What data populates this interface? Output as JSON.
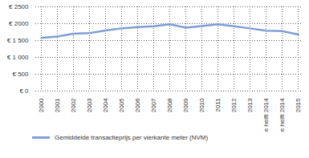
{
  "chart_data": {
    "type": "line",
    "categories": [
      "2000",
      "2001",
      "2002",
      "2003",
      "2004",
      "2005",
      "2006",
      "2007",
      "2008",
      "2009",
      "2010",
      "2011",
      "2012",
      "2013",
      "1e helft 2014",
      "2e helft 2014",
      "2015"
    ],
    "series": [
      {
        "name": "Gemiddelde transactieprijs per vierkante meter (NVM)",
        "color": "#7f9fd4",
        "values": [
          1580,
          1620,
          1700,
          1720,
          1800,
          1860,
          1900,
          1920,
          1980,
          1880,
          1930,
          1980,
          1920,
          1860,
          1790,
          1780,
          1680
        ]
      }
    ],
    "ylim": [
      0,
      2500
    ],
    "yticks": [
      {
        "value": 0,
        "label": "€ 0"
      },
      {
        "value": 500,
        "label": "€ 500"
      },
      {
        "value": 1000,
        "label": "€ 1 000"
      },
      {
        "value": 1500,
        "label": "€ 1 500"
      },
      {
        "value": 2000,
        "label": "€ 2000"
      },
      {
        "value": 2500,
        "label": "€ 2500"
      }
    ],
    "grid": true,
    "legend": "bottom"
  }
}
